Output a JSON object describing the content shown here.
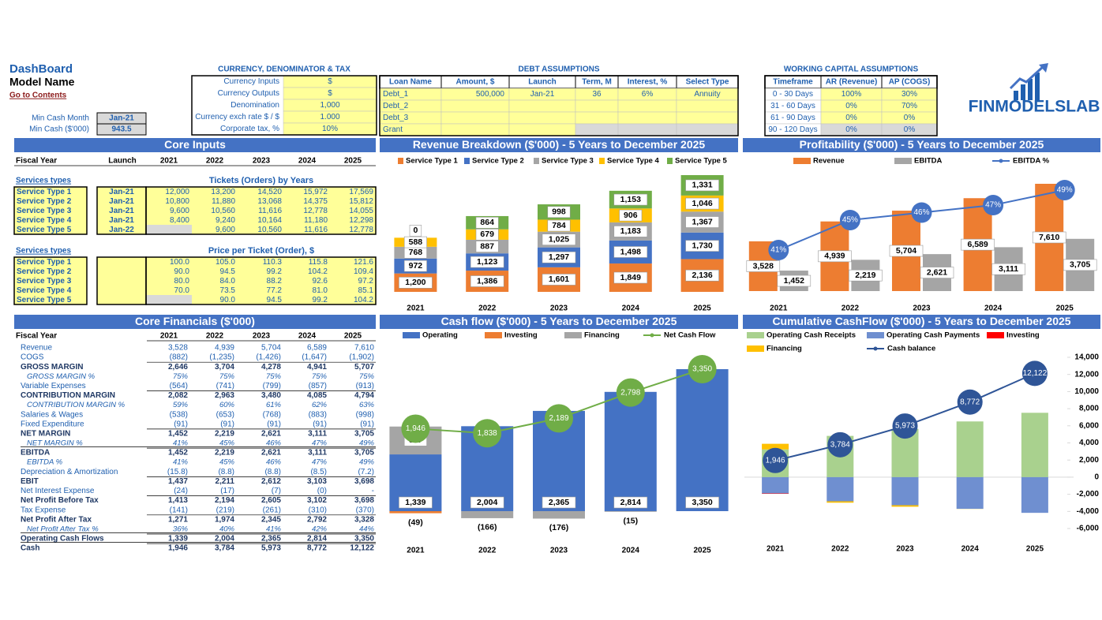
{
  "header": {
    "title": "DashBoard",
    "model_name": "Model Name",
    "link": "Go to Contents",
    "min_cash_month": {
      "label": "Min Cash Month",
      "value": "Jan-21"
    },
    "min_cash": {
      "label": "Min Cash ($'000)",
      "value": "943.5"
    }
  },
  "currency": {
    "title": "CURRENCY, DENOMINATOR & TAX",
    "rows": [
      [
        "Currency Inputs",
        "$"
      ],
      [
        "Currency Outputs",
        "$"
      ],
      [
        "Denomination",
        "1,000"
      ],
      [
        "Currency exch rate $ / $",
        "1.000"
      ],
      [
        "Corporate tax, %",
        "10%"
      ]
    ]
  },
  "debt": {
    "title": "DEBT ASSUMPTIONS",
    "columns": [
      "Loan Name",
      "Amount, $",
      "Launch",
      "Term, M",
      "Interest, %",
      "Select Type"
    ],
    "rows": [
      [
        "Debt_1",
        "500,000",
        "Jan-21",
        "36",
        "6%",
        "Annuity"
      ],
      [
        "Debt_2",
        null,
        null,
        null,
        null,
        null
      ],
      [
        "Debt_3",
        null,
        null,
        null,
        null,
        null
      ],
      [
        "Grant",
        null,
        null,
        null,
        null,
        null
      ]
    ]
  },
  "working_capital": {
    "title": "WORKING CAPITAL ASSUMPTIONS",
    "columns": [
      "Timeframe",
      "AR (Revenue)",
      "AP (COGS)"
    ],
    "rows": [
      [
        "0 - 30 Days",
        "100%",
        "30%"
      ],
      [
        "31 - 60 Days",
        "0%",
        "70%"
      ],
      [
        "61 - 90 Days",
        "0%",
        "0%"
      ],
      [
        "90 - 120 Days",
        "0%",
        "0%"
      ]
    ]
  },
  "logo": "FINMODELSLAB",
  "core_inputs": {
    "title": "Core Inputs",
    "columns": [
      "Fiscal Year",
      "Launch",
      "2021",
      "2022",
      "2023",
      "2024",
      "2025"
    ],
    "tickets": {
      "label": "Services types",
      "title": "Tickets (Orders) by Years",
      "rows": [
        [
          "Service Type 1",
          "Jan-21",
          "12,000",
          "13,200",
          "14,520",
          "15,972",
          "17,569"
        ],
        [
          "Service Type 2",
          "Jan-21",
          "10,800",
          "11,880",
          "13,068",
          "14,375",
          "15,812"
        ],
        [
          "Service Type 3",
          "Jan-21",
          "9,600",
          "10,560",
          "11,616",
          "12,778",
          "14,055"
        ],
        [
          "Service Type 4",
          "Jan-21",
          "8,400",
          "9,240",
          "10,164",
          "11,180",
          "12,298"
        ],
        [
          "Service Type 5",
          "Jan-22",
          null,
          "9,600",
          "10,560",
          "11,616",
          "12,778"
        ]
      ]
    },
    "prices": {
      "label": "Services types",
      "title": "Price per Ticket (Order), $",
      "rows": [
        [
          "Service Type 1",
          "100.0",
          "105.0",
          "110.3",
          "115.8",
          "121.6"
        ],
        [
          "Service Type 2",
          "90.0",
          "94.5",
          "99.2",
          "104.2",
          "109.4"
        ],
        [
          "Service Type 3",
          "80.0",
          "84.0",
          "88.2",
          "92.6",
          "97.2"
        ],
        [
          "Service Type 4",
          "70.0",
          "73.5",
          "77.2",
          "81.0",
          "85.1"
        ],
        [
          "Service Type 5",
          null,
          "90.0",
          "94.5",
          "99.2",
          "104.2"
        ]
      ]
    }
  },
  "core_financials": {
    "title": "Core Financials ($'000)",
    "columns": [
      "Fiscal Year",
      "2021",
      "2022",
      "2023",
      "2024",
      "2025"
    ],
    "rows": [
      [
        "Revenue",
        "3,528",
        "4,939",
        "5,704",
        "6,589",
        "7,610"
      ],
      [
        "COGS",
        "(882)",
        "(1,235)",
        "(1,426)",
        "(1,647)",
        "(1,902)"
      ],
      [
        "GROSS MARGIN",
        "2,646",
        "3,704",
        "4,278",
        "4,941",
        "5,707"
      ],
      [
        "GROSS MARGIN %",
        "75%",
        "75%",
        "75%",
        "75%",
        "75%"
      ],
      [
        "Variable Expenses",
        "(564)",
        "(741)",
        "(799)",
        "(857)",
        "(913)"
      ],
      [
        "CONTRIBUTION MARGIN",
        "2,082",
        "2,963",
        "3,480",
        "4,085",
        "4,794"
      ],
      [
        "CONTRIBUTION MARGIN %",
        "59%",
        "60%",
        "61%",
        "62%",
        "63%"
      ],
      [
        "Salaries & Wages",
        "(538)",
        "(653)",
        "(768)",
        "(883)",
        "(998)"
      ],
      [
        "Fixed Expenditure",
        "(91)",
        "(91)",
        "(91)",
        "(91)",
        "(91)"
      ],
      [
        "NET MARGIN",
        "1,452",
        "2,219",
        "2,621",
        "3,111",
        "3,705"
      ],
      [
        "NET MARGIN %",
        "41%",
        "45%",
        "46%",
        "47%",
        "49%"
      ],
      [
        "EBITDA",
        "1,452",
        "2,219",
        "2,621",
        "3,111",
        "3,705"
      ],
      [
        "EBITDA %",
        "41%",
        "45%",
        "46%",
        "47%",
        "49%"
      ],
      [
        "Depreciation & Amortization",
        "(15.8)",
        "(8.8)",
        "(8.8)",
        "(8.5)",
        "(7.2)"
      ],
      [
        "EBIT",
        "1,437",
        "2,211",
        "2,612",
        "3,103",
        "3,698"
      ],
      [
        "Net Interest Expense",
        "(24)",
        "(17)",
        "(7)",
        "(0)",
        "-"
      ],
      [
        "Net Profit Before Tax",
        "1,413",
        "2,194",
        "2,605",
        "3,102",
        "3,698"
      ],
      [
        "Tax Expense",
        "(141)",
        "(219)",
        "(261)",
        "(310)",
        "(370)"
      ],
      [
        "Net Profit After Tax",
        "1,271",
        "1,974",
        "2,345",
        "2,792",
        "3,328"
      ],
      [
        "Net Profit After Tax %",
        "36%",
        "40%",
        "41%",
        "42%",
        "44%"
      ],
      [
        "Operating Cash Flows",
        "1,339",
        "2,004",
        "2,365",
        "2,814",
        "3,350"
      ],
      [
        "Cash",
        "1,946",
        "3,784",
        "5,973",
        "8,772",
        "12,122"
      ]
    ]
  },
  "chart_data": [
    {
      "type": "bar",
      "stacked": true,
      "title": "Revenue Breakdown ($'000) - 5 Years to December 2025",
      "categories": [
        "2021",
        "2022",
        "2023",
        "2024",
        "2025"
      ],
      "series": [
        {
          "name": "Service Type 1",
          "color": "#ED7D31",
          "values": [
            1200,
            1386,
            1601,
            1849,
            2136
          ],
          "value_labels": [
            "1,200",
            "1,386",
            "1,601",
            "1,849",
            "2,136"
          ]
        },
        {
          "name": "Service Type 2",
          "color": "#4472C4",
          "values": [
            972,
            1123,
            1297,
            1498,
            1730
          ],
          "value_labels": [
            "972",
            "1,123",
            "1,297",
            "1,498",
            "1,730"
          ]
        },
        {
          "name": "Service Type 3",
          "color": "#A5A5A5",
          "values": [
            768,
            887,
            1025,
            1183,
            1367
          ],
          "value_labels": [
            "768",
            "887",
            "1,025",
            "1,183",
            "1,367"
          ]
        },
        {
          "name": "Service Type 4",
          "color": "#FFC000",
          "values": [
            588,
            679,
            784,
            906,
            1046
          ],
          "value_labels": [
            "588",
            "679",
            "784",
            "906",
            "1,046"
          ]
        },
        {
          "name": "Service Type 5",
          "color": "#70AD47",
          "values": [
            0,
            864,
            998,
            1153,
            1331
          ],
          "value_labels": [
            "0",
            "864",
            "998",
            "1,153",
            "1,331"
          ]
        }
      ]
    },
    {
      "type": "bar",
      "title": "Profitability ($'000) - 5 Years to December 2025",
      "categories": [
        "2021",
        "2022",
        "2023",
        "2024",
        "2025"
      ],
      "series": [
        {
          "name": "Revenue",
          "color": "#ED7D31",
          "values": [
            3528,
            4939,
            5704,
            6589,
            7610
          ],
          "value_labels": [
            "3,528",
            "4,939",
            "5,704",
            "6,589",
            "7,610"
          ]
        },
        {
          "name": "EBITDA",
          "color": "#A5A5A5",
          "values": [
            1452,
            2219,
            2621,
            3111,
            3705
          ],
          "value_labels": [
            "1,452",
            "2,219",
            "2,621",
            "3,111",
            "3,705"
          ]
        },
        {
          "name": "EBITDA %",
          "type": "line",
          "axis": "y2",
          "color": "#4472C4",
          "values": [
            41,
            45,
            46,
            47,
            49
          ],
          "value_labels": [
            "41%",
            "45%",
            "46%",
            "47%",
            "49%"
          ]
        }
      ]
    },
    {
      "type": "bar",
      "stacked": true,
      "title": "Cash flow ($'000) - 5 Years to December 2025",
      "categories": [
        "2021",
        "2022",
        "2023",
        "2024",
        "2025"
      ],
      "series": [
        {
          "name": "Operating",
          "color": "#4472C4",
          "values": [
            1339,
            2004,
            2365,
            2814,
            3350
          ],
          "value_labels": [
            "1,339",
            "2,004",
            "2,365",
            "2,814",
            "3,350"
          ]
        },
        {
          "name": "Investing",
          "color": "#ED7D31",
          "values": [
            -49,
            0,
            0,
            0,
            0
          ],
          "value_labels": [
            "(49)",
            null,
            null,
            null,
            null
          ]
        },
        {
          "name": "Financing",
          "color": "#A5A5A5",
          "values": [
            657,
            -166,
            -176,
            -15,
            0
          ],
          "value_labels": [
            "657",
            "(166)",
            "(176)",
            "(15)",
            null
          ]
        },
        {
          "name": "Net Cash Flow",
          "type": "line",
          "color": "#70AD47",
          "values": [
            1946,
            1838,
            2189,
            2798,
            3350
          ],
          "value_labels": [
            "1,946",
            "1,838",
            "2,189",
            "2,798",
            "3,350"
          ]
        }
      ]
    },
    {
      "type": "bar",
      "stacked": true,
      "title": "Cumulative CashFlow ($'000) - 5 Years to December 2025",
      "categories": [
        "2021",
        "2022",
        "2023",
        "2024",
        "2025"
      ],
      "ylim": [
        -6000,
        14000
      ],
      "yticks": [
        {
          "value": 14000,
          "label": "14,000"
        },
        {
          "value": 12000,
          "label": "12,000"
        },
        {
          "value": 10000,
          "label": "10,000"
        },
        {
          "value": 8000,
          "label": "8,000"
        },
        {
          "value": 6000,
          "label": "6,000"
        },
        {
          "value": 4000,
          "label": "4,000"
        },
        {
          "value": 2000,
          "label": "2,000"
        },
        0,
        {
          "value": -2000,
          "label": "-2,000"
        },
        {
          "value": -4000,
          "label": "-4,000"
        },
        {
          "value": -6000,
          "label": "-6,000"
        }
      ],
      "series": [
        {
          "name": "Operating Cash Receipts",
          "color": "#A9D18E",
          "values": [
            3240,
            4820,
            5640,
            6510,
            7520
          ]
        },
        {
          "name": "Operating Cash Payments",
          "color": "#6F8FD0",
          "values": [
            -1900,
            -2820,
            -3280,
            -3700,
            -4170
          ]
        },
        {
          "name": "Investing",
          "color": "#FF0000",
          "values": [
            -49,
            0,
            0,
            0,
            0
          ]
        },
        {
          "name": "Financing",
          "color": "#FFC000",
          "values": [
            657,
            -166,
            -176,
            -15,
            0
          ]
        },
        {
          "name": "Cash balance",
          "type": "line",
          "color": "#2F5597",
          "values": [
            1946,
            3784,
            5973,
            8772,
            12122
          ],
          "value_labels": [
            "1,946",
            "3,784",
            "5,973",
            "8,772",
            "12,122"
          ]
        }
      ]
    }
  ]
}
